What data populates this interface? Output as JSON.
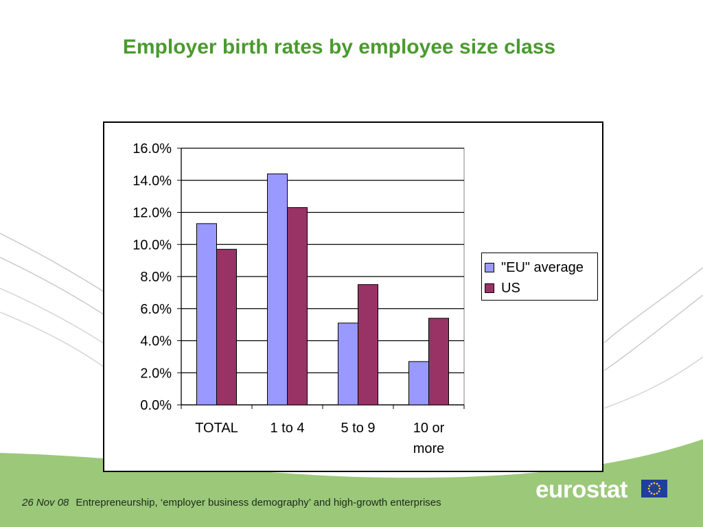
{
  "slide": {
    "title": "Employer birth rates by employee size class",
    "footer_date": "26 Nov 08",
    "footer_text": "Entrepreneurship, ‘employer business demography’ and high-growth enterprises",
    "logo_text": "eurostat"
  },
  "colors": {
    "title": "#4a9a2e",
    "footer_band": "#9cc87a",
    "eu_series": "#9999ff",
    "us_series": "#993366",
    "flag_blue": "#1f3f9a",
    "flag_stars": "#ffd700"
  },
  "chart_data": {
    "type": "bar",
    "categories": [
      "TOTAL",
      "1 to 4",
      "5 to 9",
      "10 or more"
    ],
    "series": [
      {
        "name": "\"EU\" average",
        "values": [
          11.3,
          14.4,
          5.1,
          2.7
        ]
      },
      {
        "name": "US",
        "values": [
          9.7,
          12.3,
          7.5,
          5.4
        ]
      }
    ],
    "ylim": [
      0,
      16
    ],
    "ytick_labels": [
      "0.0%",
      "2.0%",
      "4.0%",
      "6.0%",
      "8.0%",
      "10.0%",
      "12.0%",
      "14.0%",
      "16.0%"
    ],
    "grid": true,
    "legend_position": "right"
  }
}
